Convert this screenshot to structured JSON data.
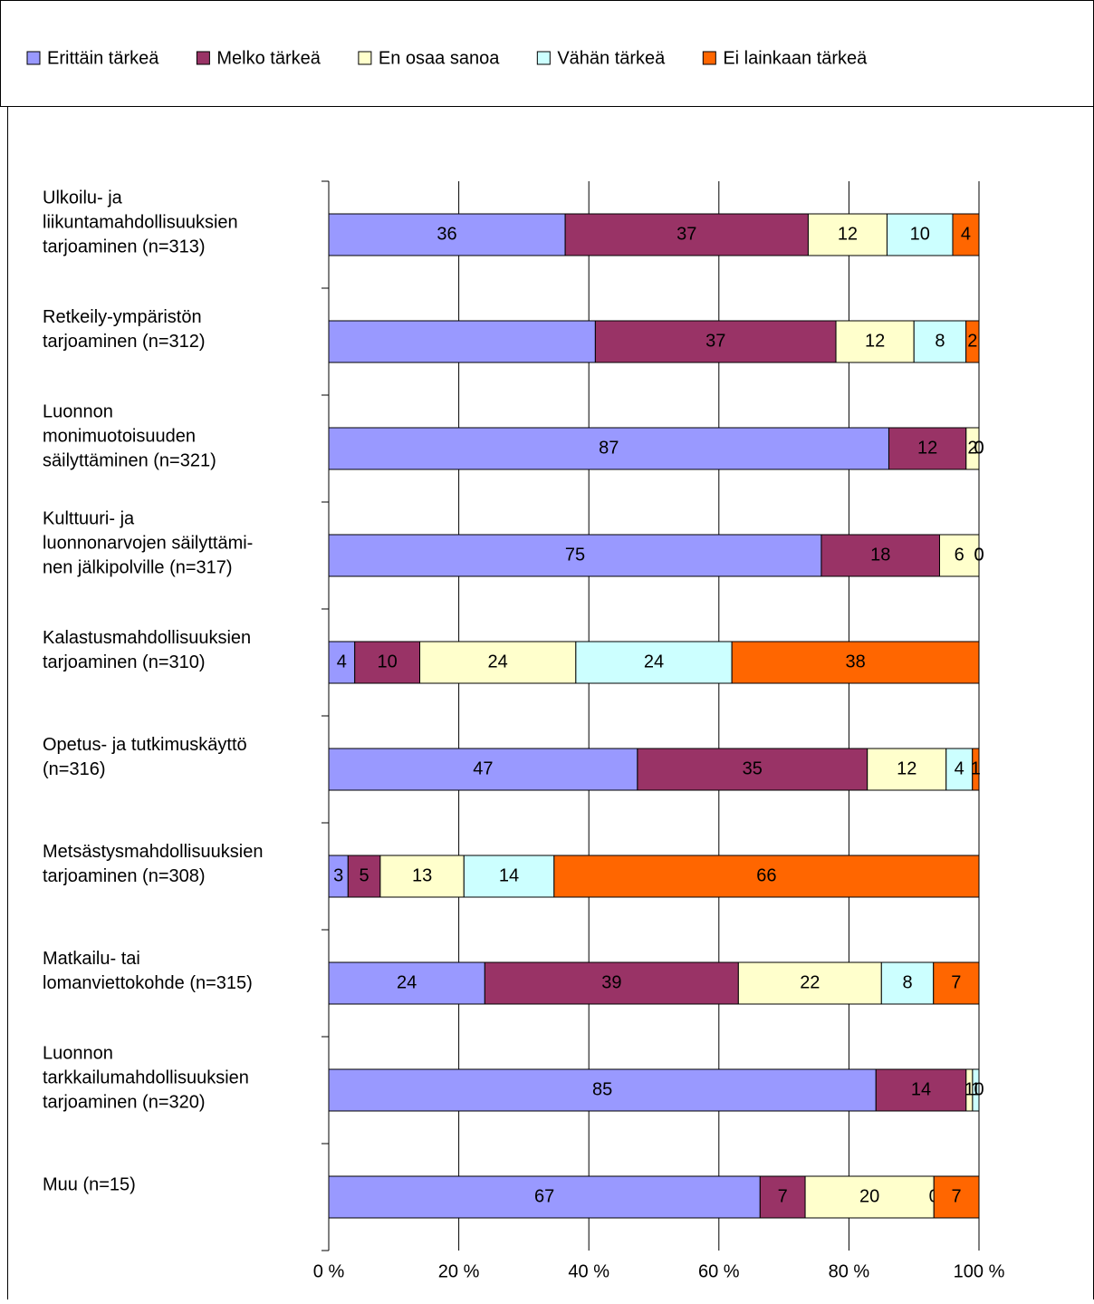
{
  "chart_data": {
    "type": "stacked_barh",
    "categories": [
      [
        "Ulkoilu- ja",
        "liikuntamahdollisuuksien",
        "tarjoaminen (n=313)"
      ],
      [
        "Retkeily-ympäristön",
        "tarjoaminen (n=312)"
      ],
      [
        "Luonnon",
        "monimuotoisuuden",
        "säilyttäminen (n=321)"
      ],
      [
        "Kulttuuri- ja",
        "luonnonarvojen säilyttämi-",
        "nen jälkipolville (n=317)"
      ],
      [
        "Kalastusmahdollisuuksien",
        "tarjoaminen (n=310)"
      ],
      [
        "Opetus- ja tutkimuskäyttö",
        "(n=316)"
      ],
      [
        "Metsästysmahdollisuuksien",
        "tarjoaminen (n=308)"
      ],
      [
        "Matkailu- tai",
        "lomanviettokohde (n=315)"
      ],
      [
        "Luonnon",
        "tarkkailumahdollisuuksien",
        "tarjoaminen (n=320)"
      ],
      [
        "Muu (n=15)"
      ]
    ],
    "series": [
      {
        "name": "Erittäin tärkeä",
        "color": "#9999ff",
        "values": [
          36,
          41,
          87,
          75,
          4,
          47,
          3,
          24,
          85,
          67
        ],
        "value_labels": [
          "36",
          null,
          "87",
          "75",
          "4",
          "47",
          "3",
          "24",
          "85",
          "67"
        ]
      },
      {
        "name": "Melko tärkeä",
        "color": "#993366",
        "values": [
          37,
          37,
          12,
          18,
          10,
          35,
          5,
          39,
          14,
          7
        ]
      },
      {
        "name": "En osaa sanoa",
        "color": "#ffffcc",
        "values": [
          12,
          12,
          2,
          6,
          24,
          12,
          13,
          22,
          1,
          20
        ]
      },
      {
        "name": "Vähän tärkeä",
        "color": "#ccffff",
        "values": [
          10,
          8,
          0,
          0,
          24,
          4,
          14,
          8,
          1,
          0
        ]
      },
      {
        "name": "Ei lainkaan tärkeä",
        "color": "#ff6600",
        "values": [
          4,
          2,
          0,
          0,
          38,
          1,
          66,
          7,
          0,
          7
        ]
      }
    ],
    "xlim": [
      0,
      100
    ],
    "xticks": [
      {
        "value": 0,
        "label": "0 %"
      },
      {
        "value": 20,
        "label": "20 %"
      },
      {
        "value": 40,
        "label": "40 %"
      },
      {
        "value": 60,
        "label": "60 %"
      },
      {
        "value": 80,
        "label": "80 %"
      },
      {
        "value": 100,
        "label": "100 %"
      }
    ],
    "grid": true,
    "legend": "top"
  }
}
